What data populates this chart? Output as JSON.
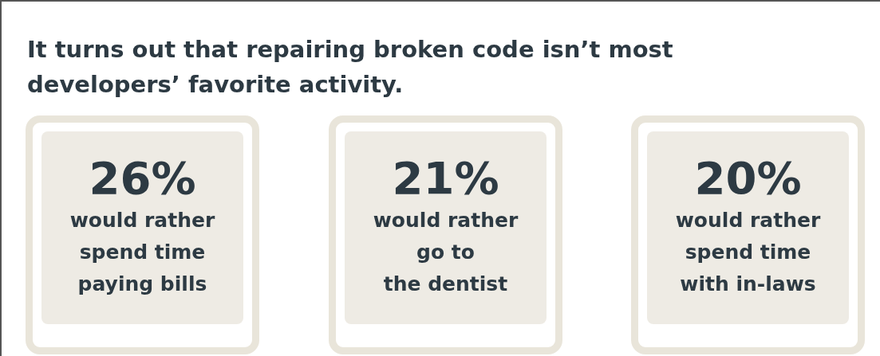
{
  "chart_data": {
    "type": "other",
    "title": "It turns out that repairing broken code isn’t most developers’ favorite activity.",
    "categories": [
      "would rather\nspend time\npaying bills",
      "would rather\ngo to\nthe dentist",
      "would rather\nspend time\nwith in-laws"
    ],
    "values": [
      26,
      21,
      20
    ],
    "value_labels": [
      "26%",
      "21%",
      "20%"
    ]
  }
}
